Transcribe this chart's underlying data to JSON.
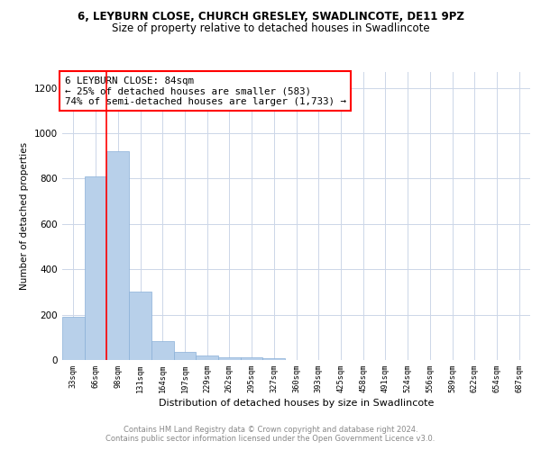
{
  "title_line1": "6, LEYBURN CLOSE, CHURCH GRESLEY, SWADLINCOTE, DE11 9PZ",
  "title_line2": "Size of property relative to detached houses in Swadlincote",
  "xlabel": "Distribution of detached houses by size in Swadlincote",
  "ylabel": "Number of detached properties",
  "bar_labels": [
    "33sqm",
    "66sqm",
    "98sqm",
    "131sqm",
    "164sqm",
    "197sqm",
    "229sqm",
    "262sqm",
    "295sqm",
    "327sqm",
    "360sqm",
    "393sqm",
    "425sqm",
    "458sqm",
    "491sqm",
    "524sqm",
    "556sqm",
    "589sqm",
    "622sqm",
    "654sqm",
    "687sqm"
  ],
  "bar_values": [
    190,
    810,
    920,
    300,
    85,
    35,
    20,
    12,
    10,
    8,
    0,
    0,
    0,
    0,
    0,
    0,
    0,
    0,
    0,
    0,
    0
  ],
  "bar_color": "#b8d0ea",
  "bar_edge_color": "#8ab0d8",
  "annotation_text": "6 LEYBURN CLOSE: 84sqm\n← 25% of detached houses are smaller (583)\n74% of semi-detached houses are larger (1,733) →",
  "ylim": [
    0,
    1270
  ],
  "yticks": [
    0,
    200,
    400,
    600,
    800,
    1000,
    1200
  ],
  "footer_text": "Contains HM Land Registry data © Crown copyright and database right 2024.\nContains public sector information licensed under the Open Government Licence v3.0.",
  "background_color": "#ffffff",
  "grid_color": "#ccd6e8"
}
